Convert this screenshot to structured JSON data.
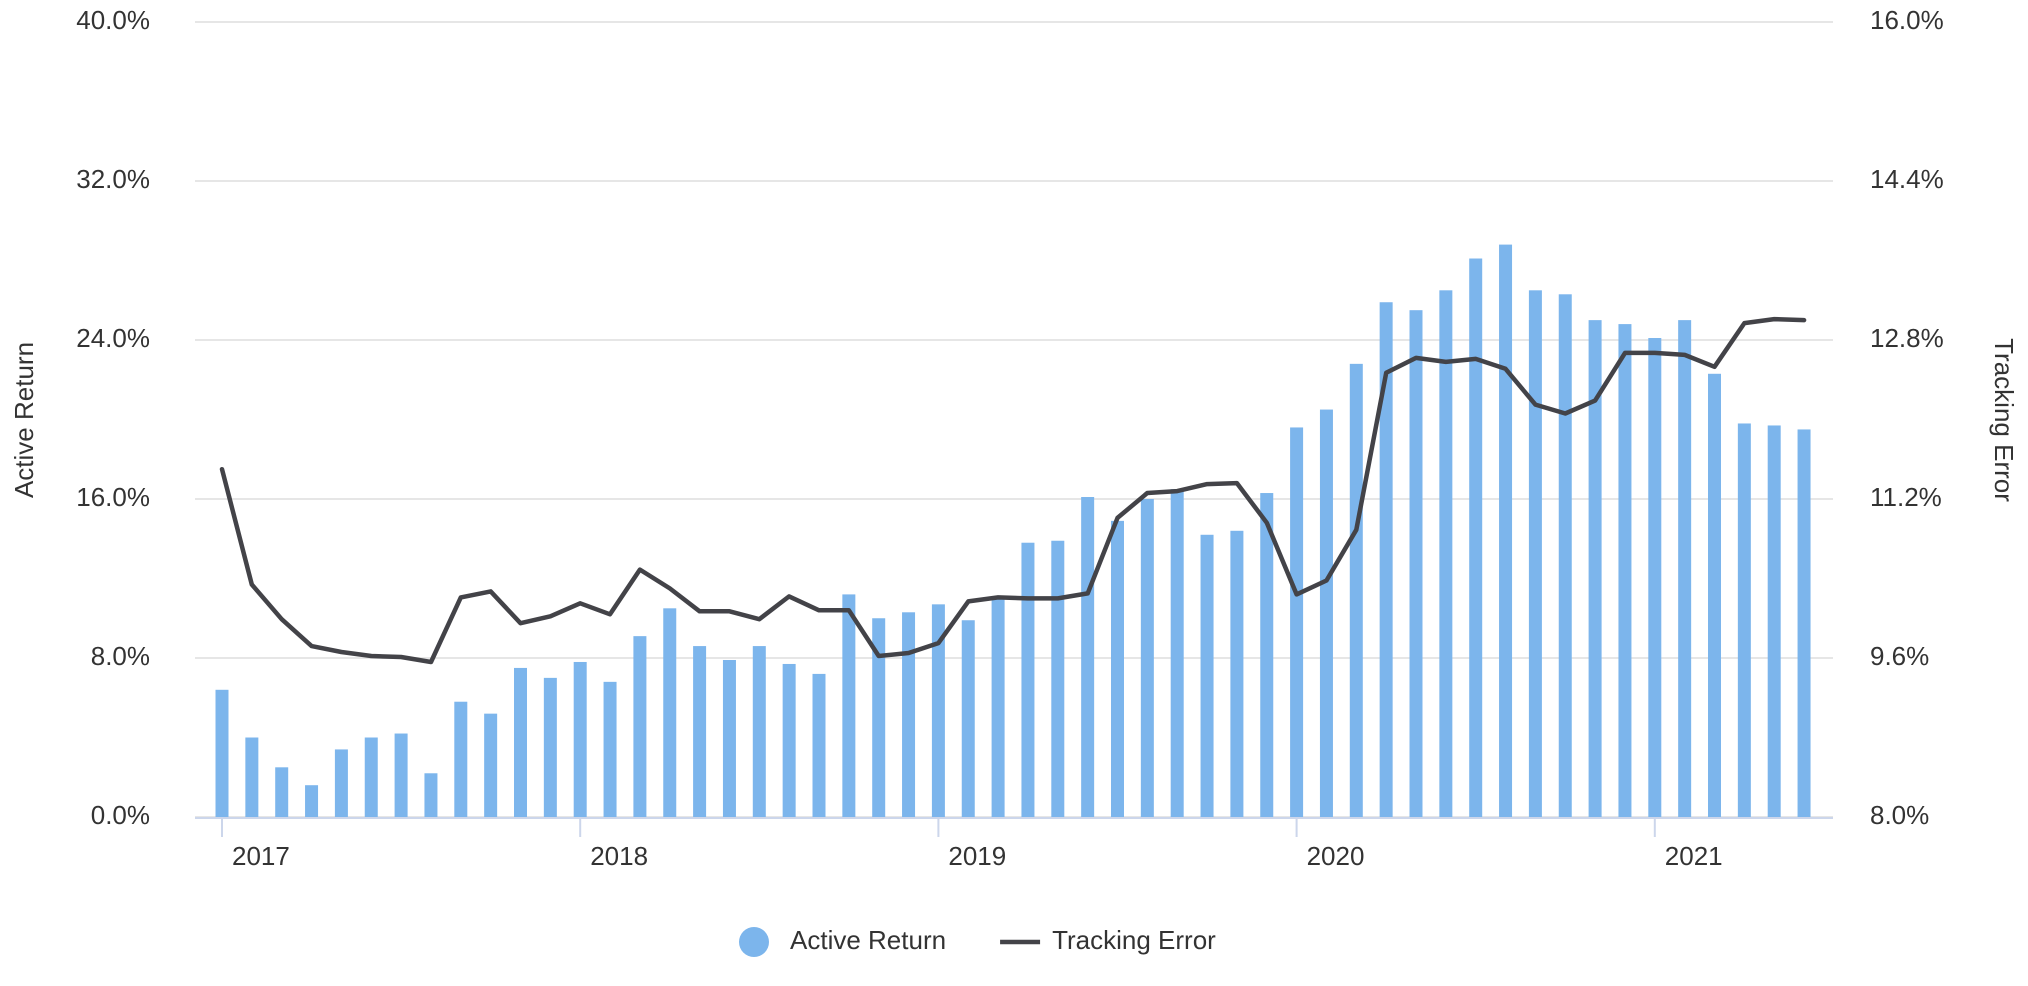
{
  "chart_data": {
    "type": "bar-line",
    "categories": [
      "2017",
      null,
      null,
      null,
      null,
      null,
      null,
      null,
      null,
      null,
      null,
      null,
      "2018",
      null,
      null,
      null,
      null,
      null,
      null,
      null,
      null,
      null,
      null,
      null,
      "2019",
      null,
      null,
      null,
      null,
      null,
      null,
      null,
      null,
      null,
      null,
      null,
      "2020",
      null,
      null,
      null,
      null,
      null,
      null,
      null,
      null,
      null,
      null,
      null,
      "2021",
      null,
      null,
      null,
      null,
      null
    ],
    "series": [
      {
        "name": "Active Return",
        "type": "bar",
        "color": "#7cb5ec",
        "axis": "y",
        "values": [
          6.4,
          4.0,
          2.5,
          1.6,
          3.4,
          4.0,
          4.2,
          2.2,
          5.8,
          5.2,
          7.5,
          7.0,
          7.8,
          6.8,
          9.1,
          10.5,
          8.6,
          7.9,
          8.6,
          7.7,
          7.2,
          11.2,
          10.0,
          10.3,
          10.7,
          9.9,
          11.0,
          13.8,
          13.9,
          16.1,
          14.9,
          16.0,
          16.5,
          14.2,
          14.4,
          16.3,
          19.6,
          20.5,
          22.8,
          25.9,
          25.5,
          26.5,
          28.1,
          28.8,
          26.5,
          26.3,
          25.0,
          24.8,
          24.1,
          25.0,
          22.3,
          19.8,
          19.7,
          19.5
        ]
      },
      {
        "name": "Tracking Error",
        "type": "line",
        "color": "#434348",
        "axis": "y2",
        "values": [
          11.5,
          10.34,
          9.99,
          9.72,
          9.66,
          9.62,
          9.61,
          9.56,
          10.21,
          10.27,
          9.95,
          10.02,
          10.15,
          10.04,
          10.49,
          10.3,
          10.07,
          10.07,
          9.99,
          10.22,
          10.08,
          10.08,
          9.62,
          9.65,
          9.75,
          10.17,
          10.21,
          10.2,
          10.2,
          10.25,
          11.01,
          11.26,
          11.28,
          11.35,
          11.36,
          10.96,
          10.24,
          10.38,
          10.89,
          12.47,
          12.62,
          12.58,
          12.61,
          12.51,
          12.15,
          12.06,
          12.19,
          12.67,
          12.67,
          12.65,
          12.53,
          12.97,
          13.01,
          13.0
        ]
      }
    ],
    "ylabel": "Active Return",
    "y2label": "Tracking Error",
    "ylim": [
      0,
      40
    ],
    "yticks": [
      {
        "value": 0,
        "label": "0.0%"
      },
      {
        "value": 8,
        "label": "8.0%"
      },
      {
        "value": 16,
        "label": "16.0%"
      },
      {
        "value": 24,
        "label": "24.0%"
      },
      {
        "value": 32,
        "label": "32.0%"
      },
      {
        "value": 40,
        "label": "40.0%"
      }
    ],
    "y2lim": [
      8,
      16
    ],
    "y2ticks": [
      {
        "value": 8,
        "label": "8.0%"
      },
      {
        "value": 9.6,
        "label": "9.6%"
      },
      {
        "value": 11.2,
        "label": "11.2%"
      },
      {
        "value": 12.8,
        "label": "12.8%"
      },
      {
        "value": 14.4,
        "label": "14.4%"
      },
      {
        "value": 16,
        "label": "16.0%"
      }
    ],
    "grid": true,
    "legend": "bottom"
  }
}
